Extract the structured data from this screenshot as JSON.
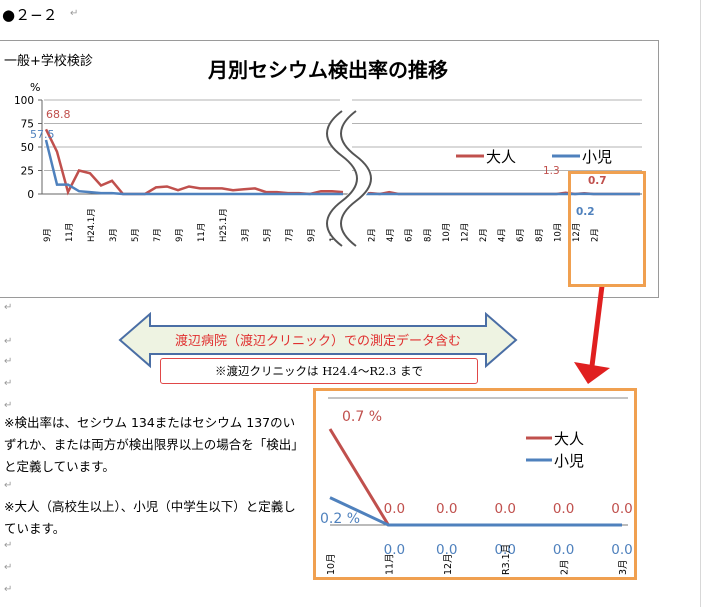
{
  "doc": {
    "heading": "●２−２",
    "para_mark": "↵",
    "paragraph1": "※検出率は、セシウム 134またはセシウム 137のいずれか、または両方が検出限界以上の場合を「検出」と定義しています。",
    "paragraph2": "※大人（高校生以上）、小児（中学生以下）と定義しています。",
    "banner_text": "渡辺病院（渡辺クリニック）での測定データ含む",
    "note_text": "※渡辺クリニックは H24.4〜R2.3 まで"
  },
  "colors": {
    "adult": "#c0504d",
    "child": "#4f81bd",
    "highlight": "#f0a050",
    "arrow": "#e02020",
    "banner_fill": "#eef3e2",
    "banner_stroke": "#4a6ea5"
  },
  "chart_data": [
    {
      "type": "line",
      "title": "月別セシウム検出率の推移",
      "subtitle": "一般+学校検診",
      "ylabel": "%",
      "ylim": [
        0,
        100
      ],
      "yticks": [
        0,
        25,
        50,
        75,
        100
      ],
      "grid": true,
      "legend": "right",
      "axis_break": true,
      "x_left": [
        "9月",
        "11月",
        "H24.1月",
        "3月",
        "5月",
        "7月",
        "9月",
        "11月",
        "H25.1月",
        "3月",
        "5月",
        "7月",
        "9月",
        "11月"
      ],
      "x_right": [
        "2月",
        "4月",
        "6月",
        "8月",
        "10月",
        "12月",
        "2月",
        "4月",
        "6月",
        "8月",
        "10月",
        "12月",
        "2月"
      ],
      "series": [
        {
          "name": "大人",
          "color": "#c0504d",
          "left": [
            68.8,
            45,
            2,
            25,
            22,
            9,
            14,
            0,
            0,
            0,
            7,
            8,
            4,
            8,
            6,
            6,
            6,
            4,
            5,
            6,
            2,
            2,
            1,
            1,
            0,
            3,
            3,
            2
          ],
          "right": [
            1,
            0,
            1,
            0,
            2,
            0,
            0,
            0,
            0,
            0,
            0,
            0,
            0,
            0,
            0,
            0,
            0,
            0,
            0,
            0,
            0,
            0,
            0,
            1.3,
            0,
            0.7,
            0,
            0,
            0,
            0,
            0,
            0
          ]
        },
        {
          "name": "小児",
          "color": "#4f81bd",
          "left": [
            57.5,
            10,
            10,
            3,
            2,
            1,
            1,
            0,
            0,
            0,
            0,
            0,
            0,
            0,
            0,
            0,
            0,
            0,
            0,
            0,
            0,
            0,
            0,
            0,
            0,
            0,
            0,
            0
          ],
          "right": [
            0,
            0,
            0,
            0,
            0,
            0,
            0,
            0,
            0,
            0,
            0,
            0,
            0,
            0,
            0,
            0,
            0,
            0,
            0,
            0,
            0,
            0,
            0,
            0,
            0,
            0.2,
            0,
            0,
            0,
            0,
            0,
            0
          ]
        }
      ],
      "data_labels": [
        "68.8",
        "57.5",
        "1.3",
        "0.7",
        "0.2"
      ]
    },
    {
      "type": "line",
      "legend": "right",
      "categories": [
        "10月",
        "11月",
        "12月",
        "R3.1月",
        "2月",
        "3月"
      ],
      "series": [
        {
          "name": "大人",
          "color": "#c0504d",
          "values": [
            0.7,
            0.0,
            0.0,
            0.0,
            0.0,
            0.0
          ],
          "labels": [
            "0.7 %",
            "0.0",
            "0.0",
            "0.0",
            "0.0",
            "0.0"
          ]
        },
        {
          "name": "小児",
          "color": "#4f81bd",
          "values": [
            0.2,
            0.0,
            0.0,
            0.0,
            0.0,
            0.0
          ],
          "labels": [
            "0.2 %",
            "0.0",
            "0.0",
            "0.0",
            "0.0",
            "0.0"
          ]
        }
      ]
    }
  ]
}
